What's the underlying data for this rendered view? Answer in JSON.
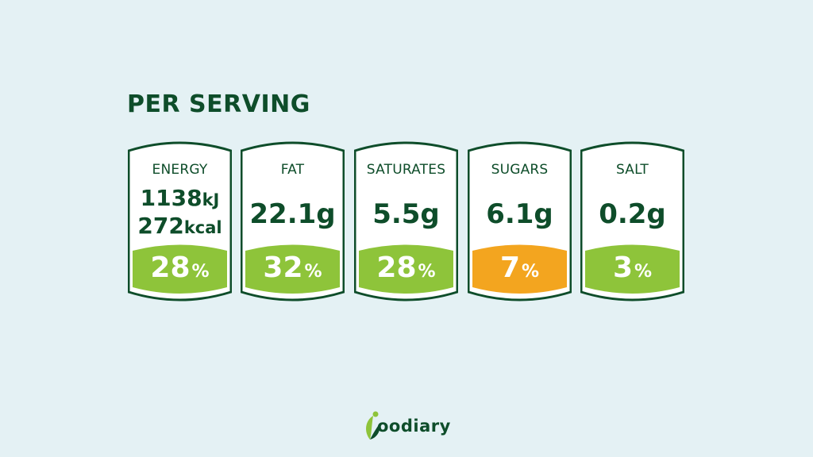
{
  "title": "PER SERVING",
  "colors": {
    "background": "#e4f1f4",
    "dark_green": "#0e4d2a",
    "light_green": "#8ec43a",
    "amber": "#f3a51f",
    "card_fill": "#ffffff"
  },
  "cards": [
    {
      "label": "ENERGY",
      "value_line1": "1138",
      "unit_line1": "kJ",
      "value_line2": "272",
      "unit_line2": "kcal",
      "percent": "28",
      "percent_sign": "%",
      "level": "green"
    },
    {
      "label": "FAT",
      "value": "22.1g",
      "percent": "32",
      "percent_sign": "%",
      "level": "green"
    },
    {
      "label": "SATURATES",
      "value": "5.5g",
      "percent": "28",
      "percent_sign": "%",
      "level": "green"
    },
    {
      "label": "SUGARS",
      "value": "6.1g",
      "percent": "7",
      "percent_sign": "%",
      "level": "amber"
    },
    {
      "label": "SALT",
      "value": "0.2g",
      "percent": "3",
      "percent_sign": "%",
      "level": "green"
    }
  ],
  "brand": {
    "name": "oodiary",
    "icon": "leaf-person-icon"
  }
}
